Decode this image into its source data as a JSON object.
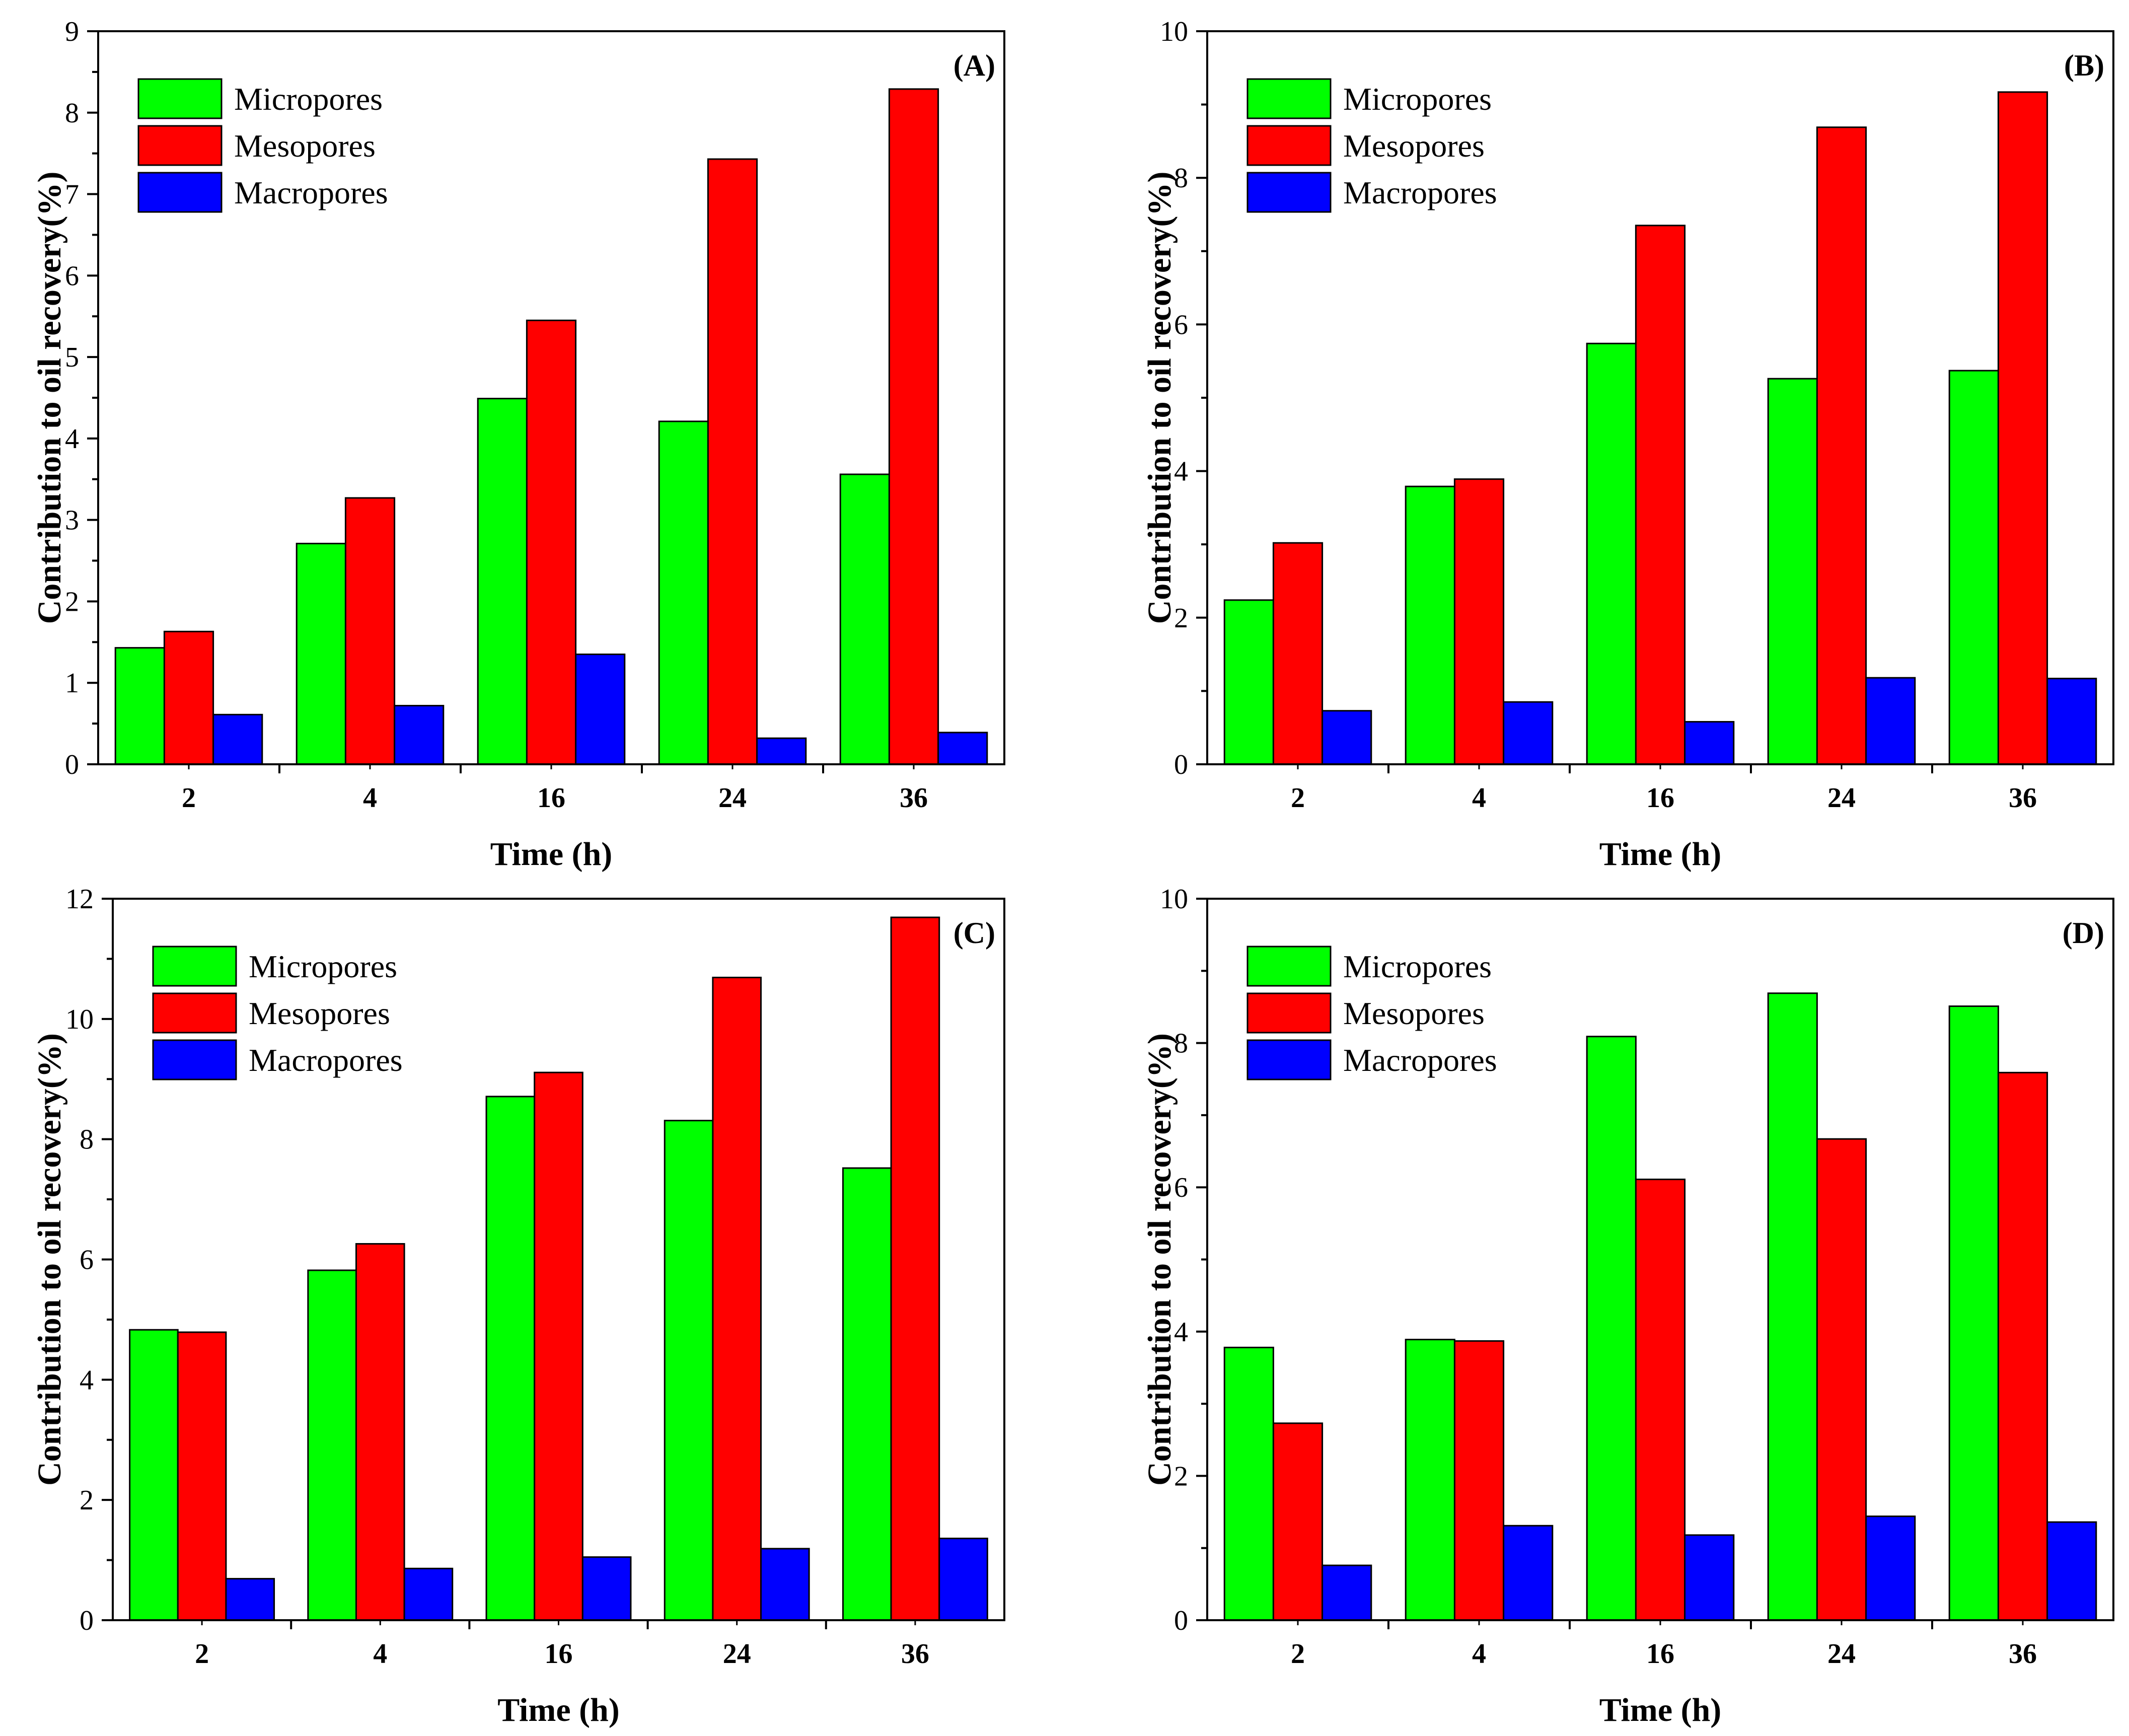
{
  "colors": {
    "Micropores": "#00ff00",
    "Mesopores": "#ff0000",
    "Macropores": "#0000ff"
  },
  "chart_data": [
    {
      "type": "bar",
      "panel": "(A)",
      "categories": [
        "2",
        "4",
        "16",
        "24",
        "36"
      ],
      "xlabel": "Time (h)",
      "ylabel": "Contribution to oil recovery(%)",
      "ylim": [
        0,
        9
      ],
      "yticks": [
        "0",
        "1",
        "2",
        "3",
        "4",
        "5",
        "6",
        "7",
        "8",
        "9"
      ],
      "legend": "top-left",
      "series": [
        {
          "name": "Micropores",
          "values": [
            1.43,
            2.71,
            4.49,
            4.21,
            3.56
          ]
        },
        {
          "name": "Mesopores",
          "values": [
            1.63,
            3.27,
            5.45,
            7.43,
            8.29
          ]
        },
        {
          "name": "Macropores",
          "values": [
            0.61,
            0.72,
            1.35,
            0.32,
            0.39
          ]
        }
      ]
    },
    {
      "type": "bar",
      "panel": "(B)",
      "categories": [
        "2",
        "4",
        "16",
        "24",
        "36"
      ],
      "xlabel": "Time (h)",
      "ylabel": "Contribution to oil recovery(%)",
      "ylim": [
        0,
        10
      ],
      "yticks": [
        "0",
        "2",
        "4",
        "6",
        "8",
        "10"
      ],
      "legend": "top-left",
      "series": [
        {
          "name": "Micropores",
          "values": [
            2.24,
            3.79,
            5.74,
            5.26,
            5.37
          ]
        },
        {
          "name": "Mesopores",
          "values": [
            3.02,
            3.89,
            7.35,
            8.69,
            9.17
          ]
        },
        {
          "name": "Macropores",
          "values": [
            0.73,
            0.85,
            0.58,
            1.18,
            1.17
          ]
        }
      ]
    },
    {
      "type": "bar",
      "panel": "(C)",
      "categories": [
        "2",
        "4",
        "16",
        "24",
        "36"
      ],
      "xlabel": "Time (h)",
      "ylabel": "Contribution to oil recovery(%)",
      "ylim": [
        0,
        12
      ],
      "yticks": [
        "0",
        "2",
        "4",
        "6",
        "8",
        "10",
        "12"
      ],
      "legend": "top-left",
      "series": [
        {
          "name": "Micropores",
          "values": [
            4.83,
            5.82,
            8.71,
            8.31,
            7.52
          ]
        },
        {
          "name": "Mesopores",
          "values": [
            4.79,
            6.26,
            9.11,
            10.69,
            11.69
          ]
        },
        {
          "name": "Macropores",
          "values": [
            0.69,
            0.86,
            1.05,
            1.19,
            1.36
          ]
        }
      ]
    },
    {
      "type": "bar",
      "panel": "(D)",
      "categories": [
        "2",
        "4",
        "16",
        "24",
        "36"
      ],
      "xlabel": "Time (h)",
      "ylabel": "Contribution to oil recovery(%)",
      "ylim": [
        0,
        10
      ],
      "yticks": [
        "0",
        "2",
        "4",
        "6",
        "8",
        "10"
      ],
      "legend": "top-left",
      "series": [
        {
          "name": "Micropores",
          "values": [
            3.78,
            3.89,
            8.09,
            8.69,
            8.51
          ]
        },
        {
          "name": "Mesopores",
          "values": [
            2.73,
            3.87,
            6.11,
            6.67,
            7.59
          ]
        },
        {
          "name": "Macropores",
          "values": [
            0.76,
            1.31,
            1.18,
            1.44,
            1.36
          ]
        }
      ]
    }
  ]
}
